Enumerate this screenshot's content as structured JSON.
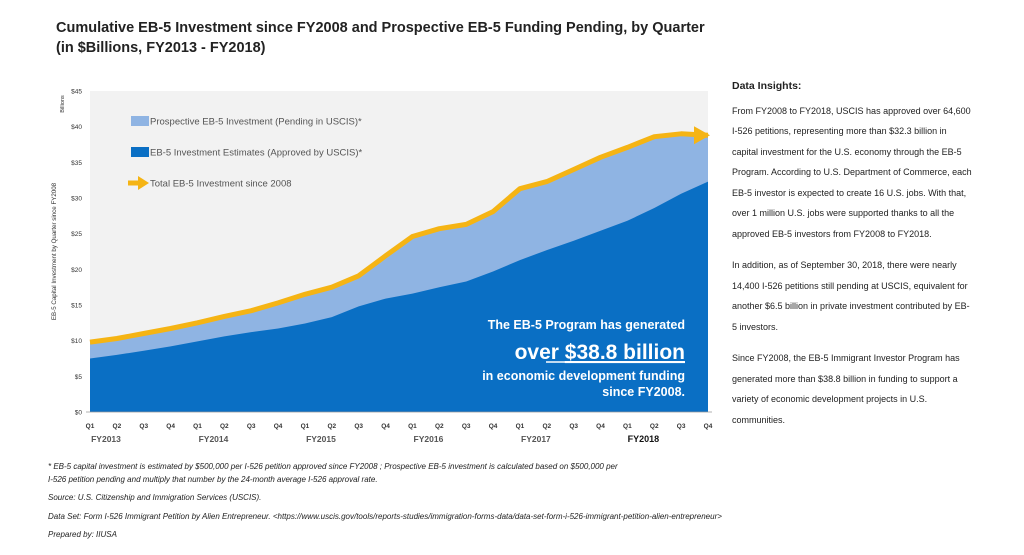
{
  "title_line1": "Cumulative EB-5 Investment since FY2008 and Prospective EB-5 Funding Pending, by Quarter",
  "title_line2": "(in $Billions, FY2013 - FY2018)",
  "colors": {
    "approved": "#0a6fc4",
    "pending": "#8fb4e3",
    "total_line": "#f5b414"
  },
  "chart_data": {
    "type": "area",
    "ylabel": "EB-5 Capital Investment by Quarter since FY2008",
    "yunit": "Billions",
    "ylim": [
      0,
      45
    ],
    "y_ticks": [
      "$0",
      "$5",
      "$10",
      "$15",
      "$20",
      "$25",
      "$30",
      "$35",
      "$40",
      "$45"
    ],
    "x": [
      "Q1",
      "Q2",
      "Q3",
      "Q4",
      "Q1",
      "Q2",
      "Q3",
      "Q4",
      "Q1",
      "Q2",
      "Q3",
      "Q4",
      "Q1",
      "Q2",
      "Q3",
      "Q4",
      "Q1",
      "Q2",
      "Q3",
      "Q4",
      "Q1",
      "Q2",
      "Q3",
      "Q4"
    ],
    "fiscal_years": [
      {
        "label": "FY2013",
        "start": 0
      },
      {
        "label": "FY2014",
        "start": 4
      },
      {
        "label": "FY2015",
        "start": 8
      },
      {
        "label": "FY2016",
        "start": 12
      },
      {
        "label": "FY2017",
        "start": 16
      },
      {
        "label": "FY2018",
        "start": 20
      }
    ],
    "series": [
      {
        "name": "Prospective EB-5 Investment (Pending in USCIS)*",
        "values": [
          2.3,
          2.3,
          2.4,
          2.5,
          2.6,
          2.8,
          3.0,
          3.6,
          4.1,
          4.2,
          4.3,
          6.0,
          8.0,
          8.2,
          8.0,
          8.4,
          10.0,
          9.6,
          10.0,
          10.3,
          10.3,
          10.0,
          8.4,
          6.5
        ]
      },
      {
        "name": "EB-5 Investment Estimates (Approved by USCIS)*",
        "values": [
          7.5,
          8.0,
          8.6,
          9.2,
          9.9,
          10.6,
          11.2,
          11.7,
          12.4,
          13.3,
          14.8,
          15.9,
          16.6,
          17.5,
          18.3,
          19.7,
          21.3,
          22.7,
          24.0,
          25.4,
          26.8,
          28.6,
          30.6,
          32.3
        ]
      },
      {
        "name": "Total EB-5 Investment since 2008",
        "values": [
          9.8,
          10.3,
          11.0,
          11.7,
          12.5,
          13.4,
          14.2,
          15.3,
          16.5,
          17.5,
          19.1,
          21.9,
          24.6,
          25.7,
          26.3,
          28.1,
          31.3,
          32.3,
          34.0,
          35.7,
          37.1,
          38.6,
          39.0,
          38.8
        ]
      }
    ],
    "legend_position": "top-left",
    "annotation": {
      "line1": "The EB-5 Program has generated",
      "line2a": "over ",
      "line2b": "$38.8 billion",
      "line3": "in economic development funding",
      "line4": "since FY2008."
    }
  },
  "insights": {
    "heading": "Data Insights:",
    "para1": "From FY2008 to FY2018, USCIS has approved over 64,600 I-526 petitions, representing more than $32.3 billion in capital investment for the U.S. economy through the EB-5 Program. According to U.S. Department of Commerce, each EB-5 investor is expected to create 16 U.S. jobs. With that, over 1 million U.S. jobs were supported thanks to all the approved EB-5 investors from FY2008 to FY2018.",
    "para2": "In addition, as of September 30, 2018, there were nearly 14,400 I-526 petitions still pending at USCIS, equivalent for another $6.5 billion in private investment contributed by EB-5 investors.",
    "para3": "Since FY2008, the EB-5 Immigrant Investor Program has generated more than $38.8 billion in funding to support a variety of economic development projects in U.S. communities."
  },
  "footer": {
    "note1": "* EB-5 capital investment  is estimated by  $500,000 per I-526 petition approved since FY2008 ;  Prospective EB-5 investment  is calculated based on  $500,000 per",
    "note2": "I-526 petition pending  and multiply that number by the 24-month average I-526 approval rate.",
    "source": "Source: U.S. Citizenship and Immigration Services (USCIS).",
    "dataset": "Data Set: Form I-526 Immigrant Petition by Alien Entrepreneur. <https://www.uscis.gov/tools/reports-studies/immigration-forms-data/data-set-form-i-526-immigrant-petition-alien-entrepreneur>",
    "prepared": "Prepared by: IIUSA"
  }
}
